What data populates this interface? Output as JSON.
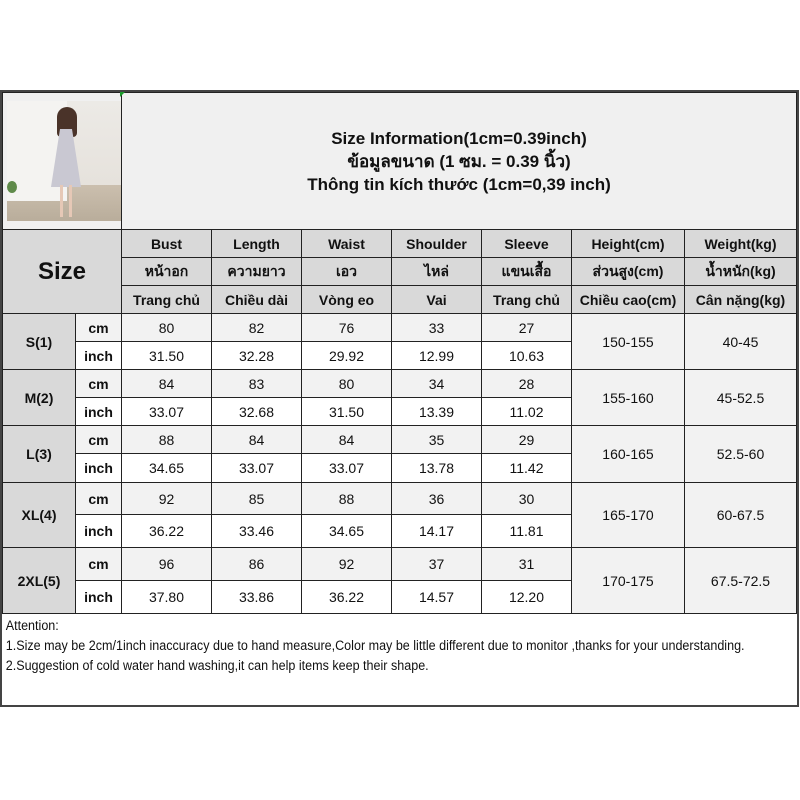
{
  "title_lines": [
    "Size Information(1cm=0.39inch)",
    "ข้อมูลขนาด (1 ซม. = 0.39 นิ้ว)",
    "Thông tin kích thước (1cm=0,39 inch)"
  ],
  "size_header": "Size",
  "columns": [
    {
      "en": "Bust",
      "th": "หน้าอก",
      "vi": "Trang chủ"
    },
    {
      "en": "Length",
      "th": "ความยาว",
      "vi": "Chiều dài"
    },
    {
      "en": "Waist",
      "th": "เอว",
      "vi": "Vòng eo"
    },
    {
      "en": "Shoulder",
      "th": "ไหล่",
      "vi": "Vai"
    },
    {
      "en": "Sleeve",
      "th": "แขนเสื้อ",
      "vi": "Trang chủ"
    },
    {
      "en": "Height(cm)",
      "th": "ส่วนสูง(cm)",
      "vi": "Chiều cao(cm)"
    },
    {
      "en": "Weight(kg)",
      "th": "น้ำหนัก(kg)",
      "vi": "Cân nặng(kg)"
    }
  ],
  "units": {
    "cm": "cm",
    "inch": "inch"
  },
  "rows": [
    {
      "size": "S(1)",
      "cm": [
        "80",
        "82",
        "76",
        "33",
        "27"
      ],
      "inch": [
        "31.50",
        "32.28",
        "29.92",
        "12.99",
        "10.63"
      ],
      "height": "150-155",
      "weight": "40-45"
    },
    {
      "size": "M(2)",
      "cm": [
        "84",
        "83",
        "80",
        "34",
        "28"
      ],
      "inch": [
        "33.07",
        "32.68",
        "31.50",
        "13.39",
        "11.02"
      ],
      "height": "155-160",
      "weight": "45-52.5"
    },
    {
      "size": "L(3)",
      "cm": [
        "88",
        "84",
        "84",
        "35",
        "29"
      ],
      "inch": [
        "34.65",
        "33.07",
        "33.07",
        "13.78",
        "11.42"
      ],
      "height": "160-165",
      "weight": "52.5-60"
    },
    {
      "size": "XL(4)",
      "cm": [
        "92",
        "85",
        "88",
        "36",
        "30"
      ],
      "inch": [
        "36.22",
        "33.46",
        "34.65",
        "14.17",
        "11.81"
      ],
      "height": "165-170",
      "weight": "60-67.5"
    },
    {
      "size": "2XL(5)",
      "cm": [
        "96",
        "86",
        "92",
        "37",
        "31"
      ],
      "inch": [
        "37.80",
        "33.86",
        "36.22",
        "14.57",
        "12.20"
      ],
      "height": "170-175",
      "weight": "67.5-72.5"
    }
  ],
  "notes": [
    "Attention:",
    "1.Size may be 2cm/1inch inaccuracy due to hand measure,Color may be little different due to monitor ,thanks for your understanding.",
    "2.Suggestion of cold water hand washing,it can help items keep their shape."
  ]
}
